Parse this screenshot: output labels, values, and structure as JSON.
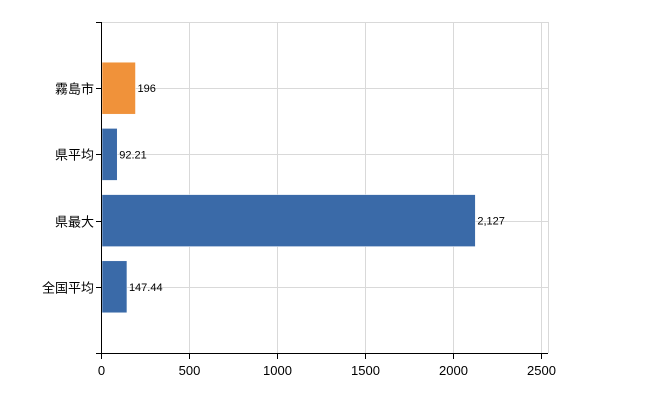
{
  "chart_data": {
    "type": "bar",
    "orientation": "horizontal",
    "categories": [
      "霧島市",
      "県平均",
      "県最大",
      "全国平均"
    ],
    "values": [
      196,
      92.21,
      2127,
      147.44
    ],
    "value_labels": [
      "196",
      "92.21",
      "2,127",
      "147.44"
    ],
    "bar_colors": [
      "#f0923a",
      "#3a6aa8",
      "#3a6aa8",
      "#3a6aa8"
    ],
    "highlight_color": "#f0923a",
    "series_color": "#3a6aa8",
    "xlim": [
      0,
      2500
    ],
    "xticks": [
      0,
      500,
      1000,
      1500,
      2000,
      2500
    ],
    "xtick_labels": [
      "0",
      "500",
      "1000",
      "1500",
      "2000",
      "2500"
    ],
    "grid": true,
    "legend": "none",
    "title": "",
    "xlabel": "",
    "ylabel": ""
  }
}
